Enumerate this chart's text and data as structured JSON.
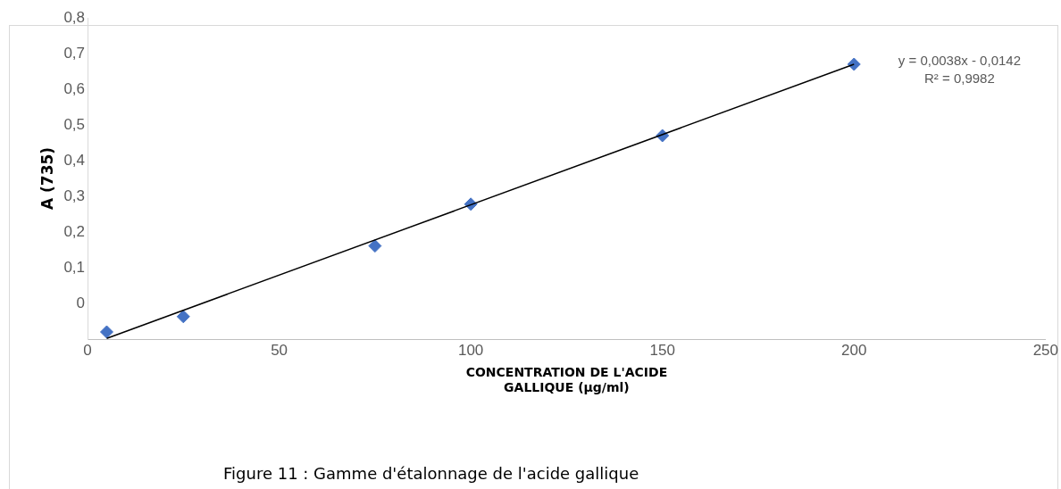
{
  "chart_data": {
    "type": "scatter",
    "xlabel": "CONCENTRATION DE L'ACIDE GALLIQUE (µg/ml)",
    "ylabel": "A (735)",
    "x": [
      5,
      25,
      75,
      100,
      150,
      200
    ],
    "series": [
      {
        "type": "scatter",
        "color": "#4472c4",
        "marker": "diamond",
        "values": [
          -0.08,
          -0.037,
          0.161,
          0.278,
          0.47,
          0.67
        ]
      },
      {
        "type": "line",
        "color": "#000000",
        "marker": "none",
        "x": [
          5,
          200
        ],
        "values": [
          -0.098,
          0.67
        ]
      }
    ],
    "xlim": [
      0,
      250
    ],
    "xticks": [
      0,
      50,
      100,
      150,
      200,
      250
    ],
    "ylim": [
      -0.1,
      0.8
    ],
    "yticks": [
      0,
      {
        "value": 0.1,
        "label": "0,1"
      },
      {
        "value": 0.2,
        "label": "0,2"
      },
      {
        "value": 0.3,
        "label": "0,3"
      },
      {
        "value": 0.4,
        "label": "0,4"
      },
      {
        "value": 0.5,
        "label": "0,5"
      },
      {
        "value": 0.6,
        "label": "0,6"
      },
      {
        "value": 0.7,
        "label": "0,7"
      },
      {
        "value": 0.8,
        "label": "0,8"
      }
    ],
    "grid": false,
    "legend": false,
    "annotations": [
      "y = 0,0038x - 0,0142",
      "R² = 0,9982",
      "Figure 11 : Gamme d'étalonnage de l'acide gallique"
    ]
  }
}
